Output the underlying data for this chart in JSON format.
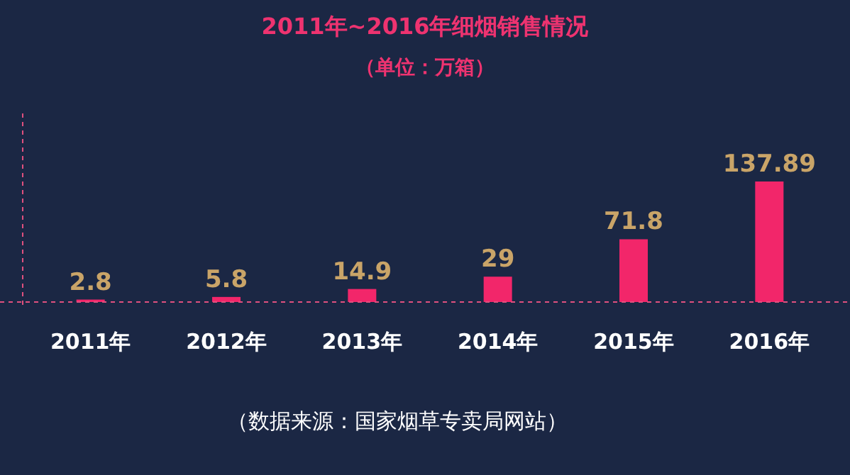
{
  "chart_data": {
    "type": "bar",
    "title": "2011年~2016年细烟销售情况",
    "subtitle": "（单位：万箱）",
    "categories": [
      "2011年",
      "2012年",
      "2013年",
      "2014年",
      "2015年",
      "2016年"
    ],
    "values": [
      2.8,
      5.8,
      14.9,
      29,
      71.8,
      137.89
    ],
    "color": "#f2266a",
    "data_labels": true,
    "annotations": [
      "（数据来源：国家烟草专卖局网站）"
    ]
  }
}
